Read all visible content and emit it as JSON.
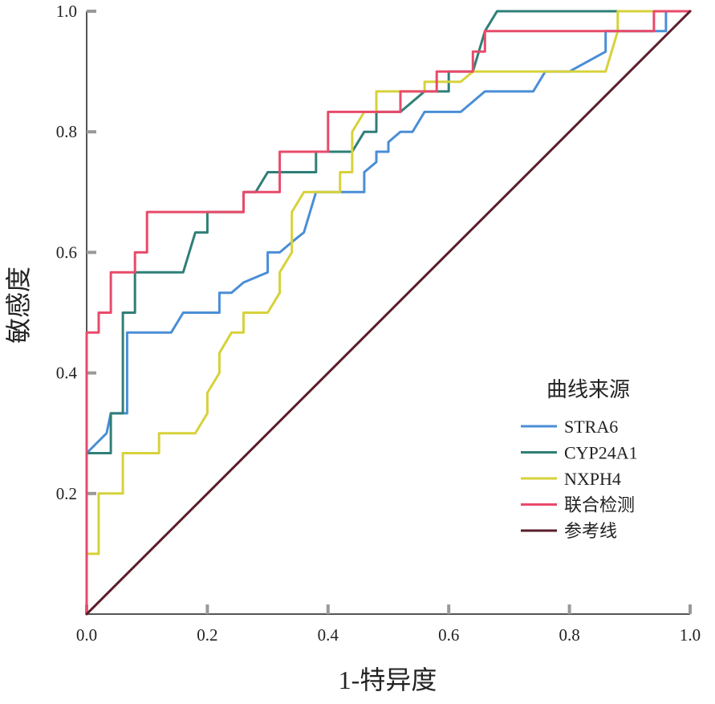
{
  "chart_data": {
    "type": "line",
    "title": "",
    "xlabel": "1-特异度",
    "ylabel": "敏感度",
    "xlim": [
      0,
      1
    ],
    "ylim": [
      0,
      1
    ],
    "x_ticks": [
      "0.0",
      "0.2",
      "0.4",
      "0.6",
      "0.8",
      "1.0"
    ],
    "y_ticks": [
      "0.2",
      "0.4",
      "0.6",
      "0.8",
      "1.0"
    ],
    "legend": {
      "title": "曲线来源",
      "placement": "center-right",
      "entries": [
        "STRA6",
        "CYP24A1",
        "NXPH4",
        "联合检测",
        "参考线"
      ]
    },
    "series": [
      {
        "name": "STRA6",
        "color": "#4a8ed6",
        "points": [
          [
            0,
            0
          ],
          [
            0,
            0.267
          ],
          [
            0.033,
            0.3
          ],
          [
            0.04,
            0.333
          ],
          [
            0.067,
            0.333
          ],
          [
            0.067,
            0.467
          ],
          [
            0.14,
            0.467
          ],
          [
            0.16,
            0.5
          ],
          [
            0.22,
            0.5
          ],
          [
            0.22,
            0.533
          ],
          [
            0.24,
            0.533
          ],
          [
            0.26,
            0.55
          ],
          [
            0.3,
            0.567
          ],
          [
            0.3,
            0.6
          ],
          [
            0.32,
            0.6
          ],
          [
            0.34,
            0.617
          ],
          [
            0.36,
            0.633
          ],
          [
            0.38,
            0.7
          ],
          [
            0.46,
            0.7
          ],
          [
            0.46,
            0.733
          ],
          [
            0.48,
            0.75
          ],
          [
            0.48,
            0.767
          ],
          [
            0.5,
            0.767
          ],
          [
            0.5,
            0.783
          ],
          [
            0.52,
            0.8
          ],
          [
            0.54,
            0.8
          ],
          [
            0.56,
            0.833
          ],
          [
            0.62,
            0.833
          ],
          [
            0.66,
            0.867
          ],
          [
            0.74,
            0.867
          ],
          [
            0.76,
            0.9
          ],
          [
            0.8,
            0.9
          ],
          [
            0.86,
            0.933
          ],
          [
            0.86,
            0.967
          ],
          [
            0.94,
            0.967
          ],
          [
            0.96,
            0.967
          ],
          [
            0.96,
            1.0
          ],
          [
            1.0,
            1.0
          ]
        ]
      },
      {
        "name": "CYP24A1",
        "color": "#2f7f77",
        "points": [
          [
            0,
            0
          ],
          [
            0,
            0.267
          ],
          [
            0.04,
            0.267
          ],
          [
            0.04,
            0.333
          ],
          [
            0.06,
            0.333
          ],
          [
            0.06,
            0.5
          ],
          [
            0.08,
            0.5
          ],
          [
            0.08,
            0.567
          ],
          [
            0.16,
            0.567
          ],
          [
            0.18,
            0.633
          ],
          [
            0.2,
            0.633
          ],
          [
            0.2,
            0.667
          ],
          [
            0.26,
            0.667
          ],
          [
            0.26,
            0.7
          ],
          [
            0.28,
            0.7
          ],
          [
            0.3,
            0.733
          ],
          [
            0.38,
            0.733
          ],
          [
            0.38,
            0.767
          ],
          [
            0.44,
            0.767
          ],
          [
            0.46,
            0.8
          ],
          [
            0.48,
            0.8
          ],
          [
            0.48,
            0.833
          ],
          [
            0.52,
            0.833
          ],
          [
            0.56,
            0.867
          ],
          [
            0.6,
            0.867
          ],
          [
            0.6,
            0.9
          ],
          [
            0.64,
            0.9
          ],
          [
            0.66,
            0.967
          ],
          [
            0.68,
            1.0
          ],
          [
            1.0,
            1.0
          ]
        ]
      },
      {
        "name": "NXPH4",
        "color": "#d6d23a",
        "points": [
          [
            0,
            0
          ],
          [
            0,
            0.1
          ],
          [
            0.02,
            0.1
          ],
          [
            0.02,
            0.2
          ],
          [
            0.06,
            0.2
          ],
          [
            0.06,
            0.267
          ],
          [
            0.12,
            0.267
          ],
          [
            0.12,
            0.3
          ],
          [
            0.18,
            0.3
          ],
          [
            0.2,
            0.333
          ],
          [
            0.2,
            0.367
          ],
          [
            0.22,
            0.4
          ],
          [
            0.22,
            0.433
          ],
          [
            0.24,
            0.467
          ],
          [
            0.26,
            0.467
          ],
          [
            0.26,
            0.5
          ],
          [
            0.3,
            0.5
          ],
          [
            0.32,
            0.533
          ],
          [
            0.32,
            0.567
          ],
          [
            0.34,
            0.6
          ],
          [
            0.34,
            0.667
          ],
          [
            0.36,
            0.7
          ],
          [
            0.42,
            0.7
          ],
          [
            0.42,
            0.733
          ],
          [
            0.44,
            0.733
          ],
          [
            0.44,
            0.8
          ],
          [
            0.46,
            0.833
          ],
          [
            0.48,
            0.833
          ],
          [
            0.48,
            0.867
          ],
          [
            0.56,
            0.867
          ],
          [
            0.56,
            0.883
          ],
          [
            0.62,
            0.883
          ],
          [
            0.64,
            0.9
          ],
          [
            0.86,
            0.9
          ],
          [
            0.88,
            0.967
          ],
          [
            0.88,
            1.0
          ],
          [
            1.0,
            1.0
          ]
        ]
      },
      {
        "name": "联合检测",
        "color": "#e84a6a",
        "points": [
          [
            0,
            0
          ],
          [
            0,
            0.467
          ],
          [
            0.02,
            0.467
          ],
          [
            0.02,
            0.5
          ],
          [
            0.04,
            0.5
          ],
          [
            0.04,
            0.567
          ],
          [
            0.08,
            0.567
          ],
          [
            0.08,
            0.6
          ],
          [
            0.1,
            0.6
          ],
          [
            0.1,
            0.667
          ],
          [
            0.26,
            0.667
          ],
          [
            0.26,
            0.7
          ],
          [
            0.32,
            0.7
          ],
          [
            0.32,
            0.767
          ],
          [
            0.4,
            0.767
          ],
          [
            0.4,
            0.833
          ],
          [
            0.52,
            0.833
          ],
          [
            0.52,
            0.867
          ],
          [
            0.58,
            0.867
          ],
          [
            0.58,
            0.9
          ],
          [
            0.64,
            0.9
          ],
          [
            0.64,
            0.933
          ],
          [
            0.66,
            0.933
          ],
          [
            0.66,
            0.967
          ],
          [
            0.94,
            0.967
          ],
          [
            0.94,
            1.0
          ],
          [
            1.0,
            1.0
          ]
        ]
      },
      {
        "name": "参考线",
        "color": "#5a1e2a",
        "points": [
          [
            0,
            0
          ],
          [
            1,
            1
          ]
        ]
      }
    ]
  }
}
